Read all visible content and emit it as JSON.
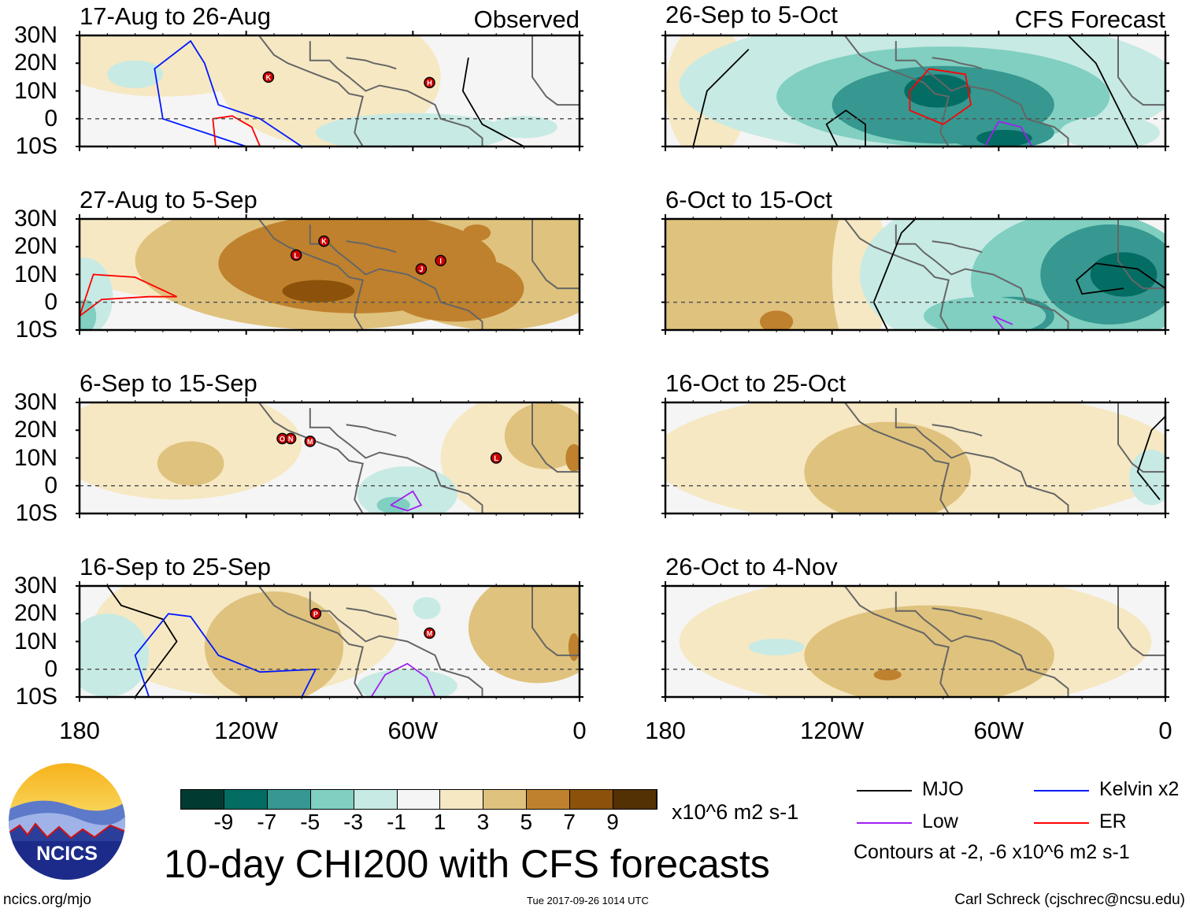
{
  "panels": [
    {
      "title": "17-Aug to 26-Aug",
      "tag": "Observed",
      "storms": [
        "K",
        "H"
      ]
    },
    {
      "title": "27-Aug to 5-Sep",
      "storms": [
        "L",
        "K",
        "J",
        "I"
      ]
    },
    {
      "title": "6-Sep to 15-Sep",
      "storms": [
        "O",
        "N",
        "M",
        "L"
      ]
    },
    {
      "title": "16-Sep to 25-Sep",
      "storms": [
        "P",
        "M"
      ]
    },
    {
      "title": "26-Sep to 5-Oct",
      "tag": "CFS Forecast",
      "storms": []
    },
    {
      "title": "6-Oct to 15-Oct",
      "storms": []
    },
    {
      "title": "16-Oct to 25-Oct",
      "storms": []
    },
    {
      "title": "26-Oct to 4-Nov",
      "storms": []
    }
  ],
  "lat_labels": [
    "30N",
    "20N",
    "10N",
    "0",
    "10S"
  ],
  "lon_labels": [
    "180",
    "120W",
    "60W",
    "0"
  ],
  "chart_data": {
    "type": "heatmap",
    "title": "10-day CHI200 with CFS forecasts",
    "variable": "CHI200",
    "units": "x10^6 m2 s-1",
    "lat_range": [
      -10,
      30
    ],
    "lon_range": [
      -180,
      0
    ],
    "colorbar": {
      "levels": [
        "-9",
        "-7",
        "-5",
        "-3",
        "-1",
        "1",
        "3",
        "5",
        "7",
        "9"
      ],
      "colors": [
        "#013a30",
        "#046d63",
        "#369890",
        "#80cfc1",
        "#c7eae4",
        "#f5f5f5",
        "#f6e8c3",
        "#dfc27d",
        "#bf812d",
        "#8c510a",
        "#543005"
      ]
    },
    "contours": {
      "legend": [
        {
          "name": "MJO",
          "color": "#000000"
        },
        {
          "name": "Kelvin x2",
          "color": "#0019ff"
        },
        {
          "name": "Low",
          "color": "#a020f0"
        },
        {
          "name": "ER",
          "color": "#ff0000"
        }
      ],
      "note": "Contours at -2, -6 x10^6 m2 s-1"
    }
  },
  "footer": {
    "logo_text": "NCICS",
    "url": "ncics.org/mjo",
    "timestamp": "Tue 2017-09-26 1014 UTC",
    "author": "Carl Schreck (cjschrec@ncsu.edu)"
  }
}
